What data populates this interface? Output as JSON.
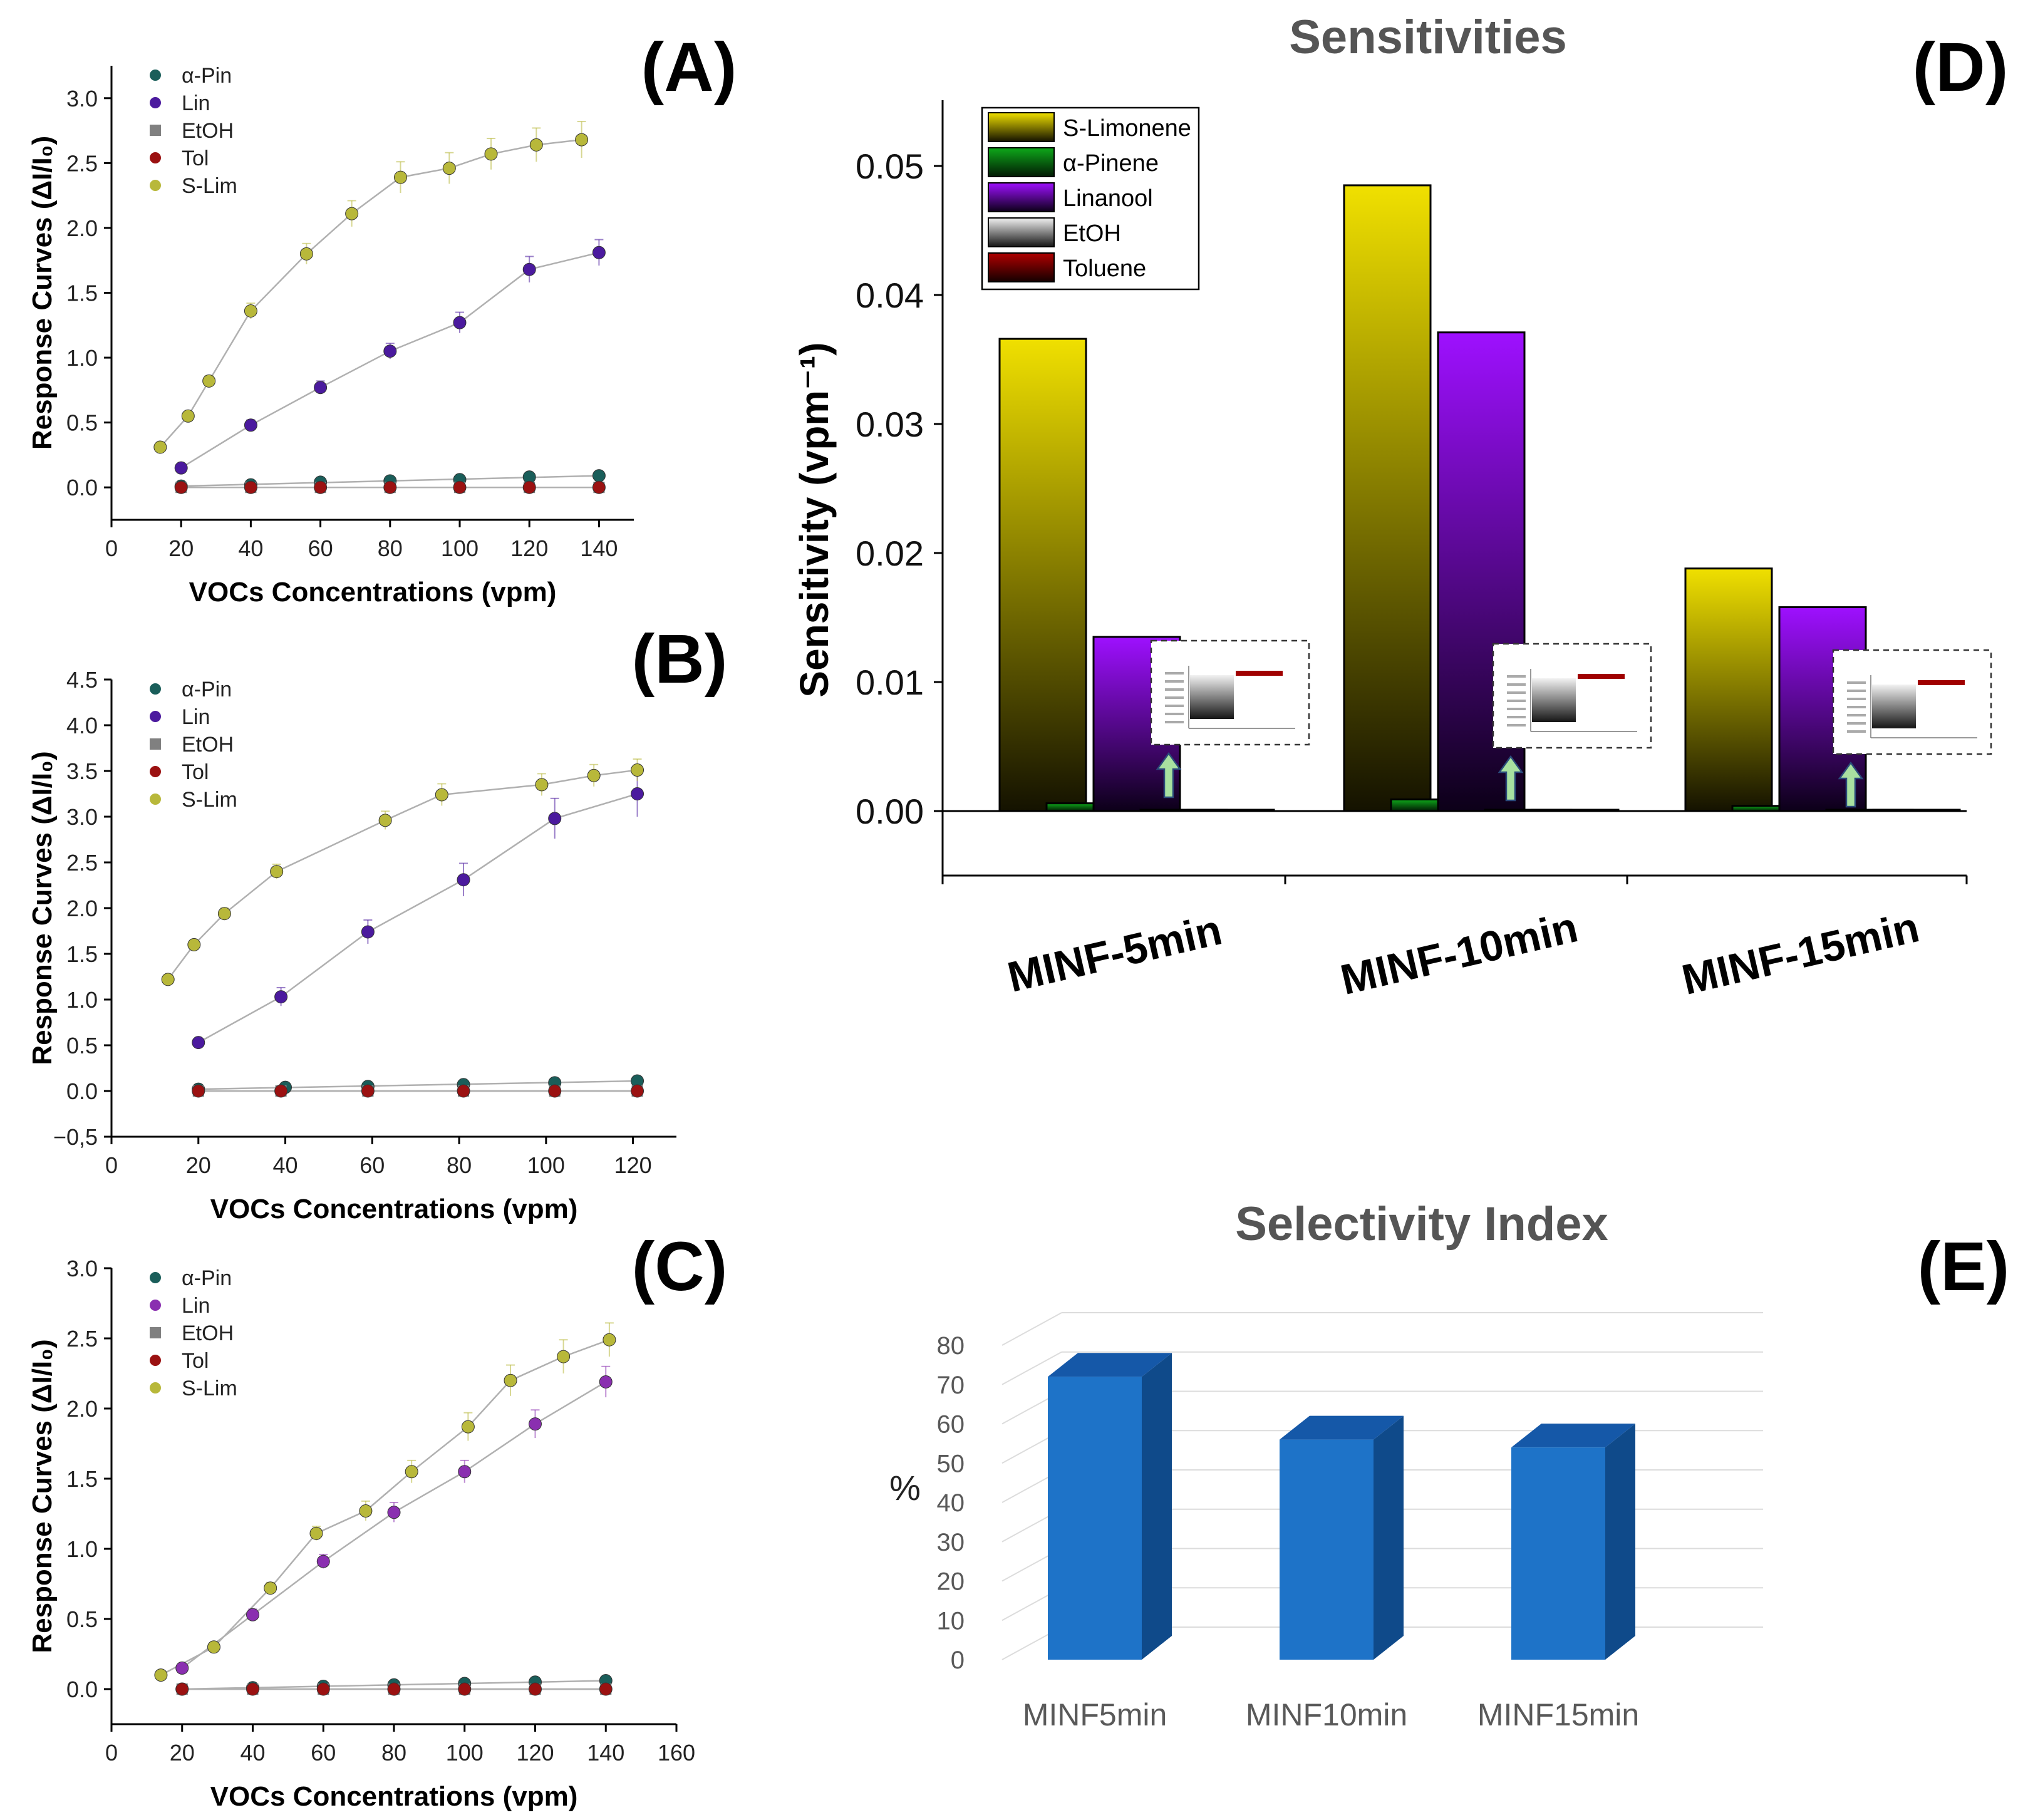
{
  "chart_data": [
    {
      "panel": "(A)",
      "type": "scatter",
      "xlabel": "VOCs Concentrations (vpm)",
      "ylabel": "Response Curves (ΔI/I₀)",
      "xlim": [
        0,
        150
      ],
      "ylim": [
        -0.25,
        3.25
      ],
      "xticks": [
        0,
        20,
        40,
        60,
        80,
        100,
        120,
        140
      ],
      "yticks": [
        0.0,
        0.5,
        1.0,
        1.5,
        2.0,
        2.5,
        3.0
      ],
      "ytick_labels": [
        "0.0",
        "0.5",
        "1.0",
        "1.5",
        "2.0",
        "2.5",
        "3.0"
      ],
      "legend": [
        "α-Pin",
        "Lin",
        "EtOH",
        "Tol",
        "S-Lim"
      ],
      "series": [
        {
          "name": "α-Pin",
          "color": "#1a5e5a",
          "x": [
            20,
            40,
            60,
            80,
            100,
            120,
            140
          ],
          "y": [
            0.01,
            0.02,
            0.04,
            0.05,
            0.06,
            0.08,
            0.09
          ]
        },
        {
          "name": "Lin",
          "color": "#4b1a9e",
          "x": [
            20,
            40,
            60,
            80,
            100,
            120,
            140
          ],
          "y": [
            0.15,
            0.48,
            0.77,
            1.05,
            1.27,
            1.68,
            1.81
          ],
          "err": [
            0.03,
            0.04,
            0.05,
            0.06,
            0.08,
            0.1,
            0.1
          ]
        },
        {
          "name": "EtOH",
          "color": "#808080",
          "x": [
            20,
            40,
            60,
            80,
            100,
            120,
            140
          ],
          "y": [
            0,
            0,
            0,
            0,
            0,
            0,
            0
          ]
        },
        {
          "name": "Tol",
          "color": "#9b1111",
          "x": [
            20,
            40,
            60,
            80,
            100,
            120,
            140
          ],
          "y": [
            0,
            0,
            0,
            0,
            0,
            0,
            0
          ]
        },
        {
          "name": "S-Lim",
          "color": "#b8b83a",
          "x": [
            14,
            22,
            28,
            40,
            56,
            69,
            83,
            97,
            109,
            122,
            135
          ],
          "y": [
            0.31,
            0.55,
            0.82,
            1.36,
            1.8,
            2.11,
            2.39,
            2.46,
            2.57,
            2.64,
            2.68
          ],
          "err": [
            0.02,
            0.03,
            0.04,
            0.06,
            0.08,
            0.1,
            0.12,
            0.12,
            0.12,
            0.13,
            0.14
          ]
        }
      ]
    },
    {
      "panel": "(B)",
      "type": "scatter",
      "xlabel": "VOCs Concentrations (vpm)",
      "ylabel": "Response Curves (ΔI/I₀)",
      "xlim": [
        0,
        130
      ],
      "ylim": [
        -0.5,
        4.5
      ],
      "xticks": [
        0,
        20,
        40,
        60,
        80,
        100,
        120
      ],
      "yticks": [
        -0.5,
        0.0,
        0.5,
        1.0,
        1.5,
        2.0,
        2.5,
        3.0,
        3.5,
        4.0,
        4.5
      ],
      "ytick_labels": [
        "−0,5",
        "0.0",
        "0.5",
        "1.0",
        "1.5",
        "2.0",
        "2.5",
        "3.0",
        "3.5",
        "4.0",
        "4.5"
      ],
      "legend": [
        "α-Pin",
        "Lin",
        "EtOH",
        "Tol",
        "S-Lim"
      ],
      "series": [
        {
          "name": "α-Pin",
          "color": "#1a5e5a",
          "x": [
            20,
            40,
            59,
            81,
            102,
            121
          ],
          "y": [
            0.02,
            0.04,
            0.05,
            0.07,
            0.09,
            0.11
          ]
        },
        {
          "name": "Lin",
          "color": "#4b1a9e",
          "x": [
            20,
            39,
            59,
            81,
            102,
            121
          ],
          "y": [
            0.53,
            1.03,
            1.74,
            2.31,
            2.98,
            3.25
          ],
          "err": [
            0.04,
            0.1,
            0.13,
            0.18,
            0.22,
            0.25
          ]
        },
        {
          "name": "EtOH",
          "color": "#808080",
          "x": [
            20,
            39,
            59,
            81,
            102,
            121
          ],
          "y": [
            0,
            0,
            0,
            0,
            0,
            0
          ]
        },
        {
          "name": "Tol",
          "color": "#9b1111",
          "x": [
            20,
            39,
            59,
            81,
            102,
            121
          ],
          "y": [
            0,
            0,
            0,
            0,
            0,
            0
          ]
        },
        {
          "name": "S-Lim",
          "color": "#b8b83a",
          "x": [
            13,
            19,
            26,
            38,
            63,
            76,
            99,
            111,
            121
          ],
          "y": [
            1.22,
            1.6,
            1.94,
            2.4,
            2.96,
            3.24,
            3.35,
            3.45,
            3.51
          ],
          "err": [
            0.04,
            0.05,
            0.06,
            0.08,
            0.1,
            0.12,
            0.12,
            0.12,
            0.12
          ]
        }
      ]
    },
    {
      "panel": "(C)",
      "type": "scatter",
      "xlabel": "VOCs Concentrations (vpm)",
      "ylabel": "Response Curves (ΔI/I₀)",
      "xlim": [
        0,
        160
      ],
      "ylim": [
        -0.25,
        3.0
      ],
      "xticks": [
        0,
        20,
        40,
        60,
        80,
        100,
        120,
        140,
        160
      ],
      "yticks": [
        0.0,
        0.5,
        1.0,
        1.5,
        2.0,
        2.5,
        3.0
      ],
      "ytick_labels": [
        "0.0",
        "0.5",
        "1.0",
        "1.5",
        "2.0",
        "2.5",
        "3.0"
      ],
      "legend": [
        "α-Pin",
        "Lin",
        "EtOH",
        "Tol",
        "S-Lim"
      ],
      "series": [
        {
          "name": "α-Pin",
          "color": "#1a5e5a",
          "x": [
            20,
            40,
            60,
            80,
            100,
            120,
            140
          ],
          "y": [
            0.0,
            0.01,
            0.02,
            0.03,
            0.04,
            0.05,
            0.06
          ]
        },
        {
          "name": "Lin",
          "color": "#8a2fb0",
          "x": [
            20,
            40,
            60,
            80,
            100,
            120,
            140
          ],
          "y": [
            0.15,
            0.53,
            0.91,
            1.26,
            1.55,
            1.89,
            2.19
          ],
          "err": [
            0.02,
            0.04,
            0.05,
            0.07,
            0.08,
            0.1,
            0.11
          ]
        },
        {
          "name": "EtOH",
          "color": "#808080",
          "x": [
            20,
            40,
            60,
            80,
            100,
            120,
            140
          ],
          "y": [
            0,
            0,
            0,
            0,
            0,
            0,
            0
          ]
        },
        {
          "name": "Tol",
          "color": "#9b1111",
          "x": [
            20,
            40,
            60,
            80,
            100,
            120,
            140
          ],
          "y": [
            0,
            0,
            0,
            0,
            0,
            0,
            0
          ]
        },
        {
          "name": "S-Lim",
          "color": "#b8b83a",
          "x": [
            14,
            29,
            45,
            58,
            72,
            85,
            101,
            113,
            128,
            141
          ],
          "y": [
            0.1,
            0.3,
            0.72,
            1.11,
            1.27,
            1.55,
            1.87,
            2.2,
            2.37,
            2.49
          ],
          "err": [
            0.02,
            0.03,
            0.04,
            0.05,
            0.07,
            0.08,
            0.1,
            0.11,
            0.12,
            0.12
          ]
        }
      ]
    },
    {
      "panel": "(D)",
      "type": "bar",
      "title": "Sensitivities",
      "xlabel": "",
      "ylabel": "Sensitivity (vpm⁻¹)",
      "ylim": [
        -0.005,
        0.055
      ],
      "yticks": [
        0.0,
        0.01,
        0.02,
        0.03,
        0.04,
        0.05
      ],
      "ytick_labels": [
        "0.00",
        "0.01",
        "0.02",
        "0.03",
        "0.04",
        "0.05"
      ],
      "categories": [
        "MINF-5min",
        "MINF-10min",
        "MINF-15min"
      ],
      "series": [
        {
          "name": "S-Limonene",
          "color": "#e6d800",
          "values": [
            0.0366,
            0.0485,
            0.0188
          ]
        },
        {
          "name": "α-Pinene",
          "color": "#0a8a12",
          "values": [
            0.0006,
            0.0009,
            0.0004
          ]
        },
        {
          "name": "Linanool",
          "color": "#9b10f5",
          "values": [
            0.0135,
            0.0371,
            0.0158
          ]
        },
        {
          "name": "EtOH",
          "color": "#d8d8d8",
          "values": [
            0.0001,
            0.0001,
            0.0001
          ]
        },
        {
          "name": "Toluene",
          "color": "#8a0000",
          "values": [
            0.0001,
            0.0001,
            0.0001
          ]
        }
      ]
    },
    {
      "panel": "(E)",
      "type": "bar",
      "title": "Selectivity Index",
      "xlabel": "",
      "ylabel": "%",
      "ylim": [
        0,
        80
      ],
      "yticks": [
        0,
        10,
        20,
        30,
        40,
        50,
        60,
        70,
        80
      ],
      "categories": [
        "MINF5min",
        "MINF10min",
        "MINF15min"
      ],
      "values": [
        72,
        56,
        54
      ],
      "color": "#1e73c8"
    }
  ],
  "panel_labels": [
    "(A)",
    "(B)",
    "(C)",
    "(D)",
    "(E)"
  ]
}
